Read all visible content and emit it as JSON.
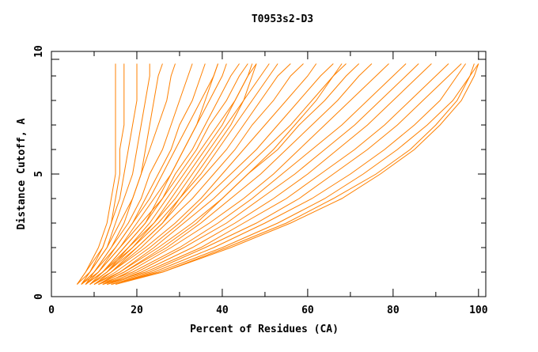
{
  "chart_data": {
    "type": "line",
    "title": "T0953s2-D3",
    "xlabel": "Percent of Residues (CA)",
    "ylabel": "Distance Cutoff, A",
    "xlim": [
      0,
      101.7
    ],
    "ylim": [
      0,
      10
    ],
    "x_ticks": [
      "0",
      "20",
      "40",
      "60",
      "80",
      "100"
    ],
    "y_ticks": [
      "0",
      "5",
      "10"
    ],
    "grid": false,
    "line_color": "#ff8000",
    "y_levels": [
      0.5,
      1,
      2,
      3,
      4,
      5,
      6,
      7,
      8,
      9,
      9.5
    ],
    "series": [
      {
        "x": [
          6,
          8,
          11,
          13,
          14,
          15,
          15,
          15,
          15,
          15,
          15
        ]
      },
      {
        "x": [
          7,
          9,
          12,
          14,
          15,
          16,
          16,
          17,
          17,
          17,
          17
        ]
      },
      {
        "x": [
          6,
          8,
          12,
          14,
          16,
          17,
          18,
          19,
          20,
          20,
          20
        ]
      },
      {
        "x": [
          7,
          9,
          13,
          15,
          17,
          19,
          20,
          21,
          22,
          23,
          23
        ]
      },
      {
        "x": [
          8,
          10,
          14,
          17,
          19,
          21,
          22,
          23,
          24,
          25,
          26
        ]
      },
      {
        "x": [
          6,
          9,
          13,
          16,
          19,
          21,
          23,
          25,
          27,
          28,
          29
        ]
      },
      {
        "x": [
          7,
          10,
          14,
          18,
          21,
          23,
          26,
          28,
          30,
          32,
          33
        ]
      },
      {
        "x": [
          8,
          11,
          15,
          19,
          22,
          25,
          28,
          30,
          33,
          35,
          36
        ]
      },
      {
        "x": [
          7,
          10,
          15,
          19,
          23,
          26,
          29,
          32,
          35,
          38,
          39
        ]
      },
      {
        "x": [
          8,
          11,
          16,
          20,
          24,
          28,
          31,
          34,
          37,
          40,
          41
        ]
      },
      {
        "x": [
          9,
          12,
          17,
          22,
          26,
          29,
          33,
          36,
          39,
          42,
          44
        ]
      },
      {
        "x": [
          7,
          11,
          16,
          21,
          26,
          30,
          34,
          37,
          41,
          44,
          46
        ]
      },
      {
        "x": [
          8,
          12,
          18,
          23,
          27,
          31,
          35,
          39,
          43,
          46,
          48
        ]
      },
      {
        "x": [
          9,
          13,
          18,
          24,
          29,
          33,
          37,
          41,
          45,
          49,
          51
        ]
      },
      {
        "x": [
          8,
          12,
          19,
          25,
          30,
          35,
          39,
          43,
          47,
          51,
          53
        ]
      },
      {
        "x": [
          9,
          13,
          20,
          26,
          31,
          36,
          41,
          45,
          49,
          53,
          56
        ]
      },
      {
        "x": [
          10,
          14,
          21,
          27,
          33,
          38,
          43,
          47,
          52,
          56,
          59
        ]
      },
      {
        "x": [
          9,
          14,
          22,
          29,
          35,
          40,
          45,
          50,
          55,
          60,
          62
        ]
      },
      {
        "x": [
          10,
          15,
          23,
          30,
          36,
          42,
          48,
          53,
          58,
          63,
          66
        ]
      },
      {
        "x": [
          11,
          16,
          24,
          31,
          38,
          44,
          50,
          56,
          61,
          66,
          69
        ]
      },
      {
        "x": [
          10,
          16,
          25,
          33,
          40,
          46,
          53,
          58,
          64,
          69,
          72
        ]
      },
      {
        "x": [
          11,
          17,
          27,
          35,
          42,
          49,
          55,
          61,
          67,
          72,
          75
        ]
      },
      {
        "x": [
          12,
          18,
          28,
          37,
          45,
          52,
          58,
          64,
          70,
          76,
          79
        ]
      },
      {
        "x": [
          11,
          19,
          30,
          39,
          47,
          54,
          61,
          68,
          74,
          80,
          83
        ]
      },
      {
        "x": [
          12,
          20,
          31,
          41,
          49,
          57,
          64,
          71,
          77,
          83,
          86
        ]
      },
      {
        "x": [
          13,
          21,
          33,
          43,
          52,
          60,
          67,
          74,
          80,
          86,
          89
        ]
      },
      {
        "x": [
          12,
          22,
          35,
          45,
          55,
          63,
          71,
          78,
          84,
          90,
          93
        ]
      },
      {
        "x": [
          13,
          23,
          36,
          48,
          58,
          66,
          74,
          81,
          87,
          93,
          96
        ]
      },
      {
        "x": [
          14,
          24,
          38,
          50,
          61,
          70,
          78,
          85,
          91,
          95,
          97
        ]
      },
      {
        "x": [
          14,
          25,
          40,
          53,
          64,
          73,
          81,
          88,
          94,
          98,
          100
        ]
      },
      {
        "x": [
          15,
          26,
          42,
          56,
          68,
          77,
          85,
          91,
          96,
          99,
          100
        ]
      },
      {
        "x": [
          14,
          26,
          41,
          55,
          66,
          76,
          84,
          90,
          95,
          98,
          99
        ]
      },
      {
        "x": [
          10,
          14,
          20,
          26,
          30,
          34,
          38,
          42,
          45,
          47,
          48
        ]
      },
      {
        "x": [
          9,
          13,
          19,
          24,
          28,
          32,
          36,
          40,
          43,
          46,
          47
        ]
      },
      {
        "x": [
          11,
          17,
          26,
          34,
          40,
          46,
          52,
          57,
          62,
          66,
          68
        ]
      },
      {
        "x": [
          8,
          12,
          17,
          22,
          25,
          28,
          31,
          34,
          36,
          38,
          39
        ]
      }
    ]
  }
}
